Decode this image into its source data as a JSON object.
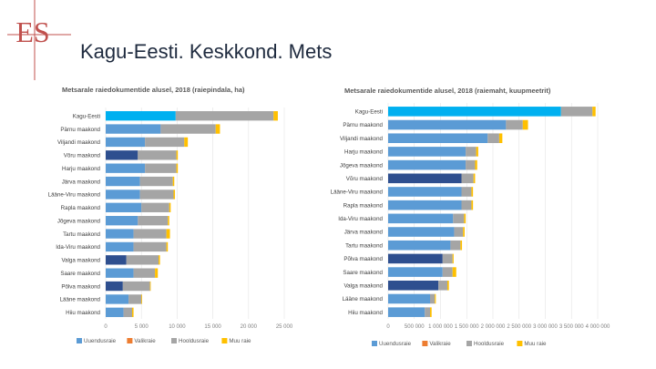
{
  "header": {
    "title": "Kagu-Eesti. Keskkond. Mets",
    "logo_text": "ES",
    "accent_color": "#c0504d"
  },
  "chart_data": [
    {
      "type": "bar",
      "orientation": "horizontal",
      "stacked": true,
      "title": "Metsarale raiedokumentide alusel, 2018 (raiepindala, ha)",
      "categories": [
        "Kagu-Eesti",
        "Pärnu maakond",
        "Viljandi maakond",
        "Võru maakond",
        "Harju maakond",
        "Järva maakond",
        "Lääne-Viru maakond",
        "Rapla maakond",
        "Jõgeva maakond",
        "Tartu maakond",
        "Ida-Viru maakond",
        "Valga maakond",
        "Saare maakond",
        "Põlva maakond",
        "Lääne maakond",
        "Hiiu maakond"
      ],
      "series": [
        {
          "name": "Uuendusraie",
          "color": "#5b9bd5",
          "values": [
            9800,
            7700,
            5500,
            4500,
            5500,
            4800,
            4800,
            5000,
            4500,
            3900,
            3900,
            2900,
            3900,
            2400,
            3200,
            2500
          ]
        },
        {
          "name": "Valikraie",
          "color": "#ed7d31",
          "values": [
            0,
            0,
            0,
            0,
            0,
            0,
            0,
            0,
            0,
            0,
            0,
            0,
            0,
            0,
            0,
            0
          ]
        },
        {
          "name": "Hooldusraie",
          "color": "#a5a5a5",
          "values": [
            13700,
            7700,
            5500,
            5400,
            4400,
            4600,
            4700,
            3900,
            4200,
            4600,
            4600,
            4500,
            3000,
            3800,
            1800,
            1200
          ]
        },
        {
          "name": "Muu raie",
          "color": "#ffc000",
          "values": [
            600,
            600,
            500,
            200,
            200,
            200,
            200,
            200,
            200,
            500,
            200,
            200,
            400,
            100,
            100,
            200
          ]
        }
      ],
      "highlight_colors": {
        "Kagu-Eesti": "#00b0f0",
        "Võru maakond": "#2e4f8f",
        "Valga maakond": "#2e4f8f",
        "Põlva maakond": "#2e4f8f"
      },
      "xlim": [
        0,
        25000
      ],
      "xticks": [
        "0",
        "5 000",
        "10 000",
        "15 000",
        "20 000",
        "25 000"
      ],
      "legend_position": "bottom",
      "legend": [
        "Uuendusraie",
        "Valikraie",
        "Hooldusraie",
        "Muu raie"
      ]
    },
    {
      "type": "bar",
      "orientation": "horizontal",
      "stacked": true,
      "title": "Metsarale raiedokumentide alusel, 2018 (raiemaht, kuupmeetrit)",
      "categories": [
        "Kagu-Eesti",
        "Pärnu maakond",
        "Viljandi maakond",
        "Harju maakond",
        "Jõgeva maakond",
        "Võru maakond",
        "Lääne-Viru maakond",
        "Rapla maakond",
        "Ida-Viru maakond",
        "Järva maakond",
        "Tartu maakond",
        "Põlva maakond",
        "Saare maakond",
        "Valga maakond",
        "Lääne maakond",
        "Hiiu maakond"
      ],
      "series": [
        {
          "name": "Uuendusraie",
          "color": "#5b9bd5",
          "values": [
            3300000,
            2250000,
            1900000,
            1480000,
            1480000,
            1400000,
            1400000,
            1400000,
            1240000,
            1260000,
            1190000,
            1040000,
            1040000,
            960000,
            800000,
            700000
          ]
        },
        {
          "name": "Valikraie",
          "color": "#ed7d31",
          "values": [
            0,
            0,
            0,
            0,
            0,
            0,
            0,
            0,
            0,
            0,
            0,
            0,
            0,
            0,
            0,
            0
          ]
        },
        {
          "name": "Hooldusraie",
          "color": "#a5a5a5",
          "values": [
            600000,
            320000,
            220000,
            200000,
            180000,
            230000,
            190000,
            190000,
            210000,
            170000,
            190000,
            190000,
            190000,
            170000,
            90000,
            100000
          ]
        },
        {
          "name": "Muu raie",
          "color": "#ffc000",
          "values": [
            60000,
            100000,
            60000,
            40000,
            40000,
            30000,
            30000,
            30000,
            30000,
            30000,
            30000,
            20000,
            70000,
            30000,
            20000,
            30000
          ]
        }
      ],
      "highlight_colors": {
        "Kagu-Eesti": "#00b0f0",
        "Võru maakond": "#2e4f8f",
        "Põlva maakond": "#2e4f8f",
        "Valga maakond": "#2e4f8f"
      },
      "xlim": [
        0,
        4000000
      ],
      "xticks": [
        "0",
        "500 000",
        "1 000 000",
        "1 500 000",
        "2 000 000",
        "2 500 000",
        "3 000 000",
        "3 500 000",
        "4 000 000"
      ],
      "legend_position": "bottom",
      "legend": [
        "Uuendusraie",
        "Valikraie",
        "Hooldusraie",
        "Muu raie"
      ]
    }
  ]
}
